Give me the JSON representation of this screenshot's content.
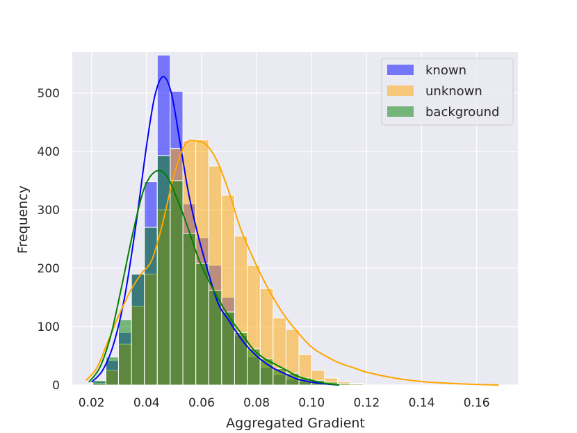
{
  "chart_data": {
    "type": "histogram",
    "xlabel": "Aggregated Gradient",
    "ylabel": "Frequency",
    "xlim": [
      0.013,
      0.175
    ],
    "ylim": [
      0,
      570
    ],
    "x_ticks": [
      "0.02",
      "0.04",
      "0.06",
      "0.08",
      "0.10",
      "0.12",
      "0.14",
      "0.16"
    ],
    "y_ticks": [
      "0",
      "100",
      "200",
      "300",
      "400",
      "500"
    ],
    "grid": true,
    "legend_position": "top-right",
    "bin_edges": [
      0.0205,
      0.0252,
      0.0298,
      0.0345,
      0.0392,
      0.0439,
      0.0486,
      0.0532,
      0.0579,
      0.0626,
      0.0673,
      0.072,
      0.0766,
      0.0813,
      0.086,
      0.0907,
      0.0954,
      0.1,
      0.1047,
      0.1094,
      0.1141,
      0.1188
    ],
    "series": [
      {
        "name": "known",
        "color": "#0000ff",
        "counts": [
          6,
          42,
          90,
          190,
          348,
          565,
          503,
          310,
          252,
          205,
          150,
          85,
          48,
          30,
          18,
          10,
          6,
          3,
          2,
          1,
          1
        ],
        "kde_x": [
          0.02,
          0.024,
          0.028,
          0.032,
          0.036,
          0.04,
          0.043,
          0.046,
          0.049,
          0.052,
          0.055,
          0.058,
          0.062,
          0.066,
          0.07,
          0.075,
          0.08,
          0.085,
          0.09,
          0.095,
          0.1,
          0.105,
          0.11
        ],
        "kde_y": [
          5,
          25,
          70,
          150,
          270,
          410,
          495,
          528,
          500,
          420,
          335,
          270,
          200,
          140,
          110,
          75,
          50,
          32,
          20,
          10,
          5,
          2,
          0
        ]
      },
      {
        "name": "unknown",
        "color": "#ffa500",
        "counts": [
          3,
          25,
          70,
          135,
          190,
          300,
          405,
          418,
          420,
          375,
          325,
          255,
          205,
          165,
          115,
          95,
          52,
          25,
          12,
          6,
          3
        ],
        "kde_x": [
          0.018,
          0.022,
          0.026,
          0.03,
          0.034,
          0.038,
          0.042,
          0.046,
          0.05,
          0.054,
          0.058,
          0.062,
          0.066,
          0.07,
          0.074,
          0.078,
          0.082,
          0.086,
          0.09,
          0.095,
          0.1,
          0.105,
          0.11,
          0.115,
          0.12,
          0.13,
          0.14,
          0.15,
          0.16,
          0.168
        ],
        "kde_y": [
          8,
          30,
          75,
          120,
          160,
          190,
          215,
          280,
          360,
          412,
          418,
          410,
          380,
          330,
          270,
          225,
          185,
          150,
          120,
          90,
          65,
          50,
          38,
          30,
          22,
          12,
          6,
          3,
          1,
          0
        ]
      },
      {
        "name": "background",
        "color": "#008000",
        "counts": [
          8,
          48,
          112,
          190,
          270,
          393,
          350,
          260,
          208,
          162,
          125,
          90,
          62,
          45,
          28,
          20,
          12,
          8,
          5,
          3,
          2
        ],
        "kde_x": [
          0.019,
          0.023,
          0.027,
          0.031,
          0.035,
          0.039,
          0.043,
          0.047,
          0.051,
          0.055,
          0.059,
          0.063,
          0.067,
          0.071,
          0.075,
          0.079,
          0.083,
          0.087,
          0.091,
          0.095,
          0.1,
          0.105,
          0.11
        ],
        "kde_y": [
          5,
          30,
          85,
          170,
          260,
          335,
          365,
          360,
          320,
          270,
          215,
          175,
          140,
          110,
          85,
          60,
          45,
          35,
          25,
          15,
          8,
          3,
          0
        ]
      }
    ]
  }
}
